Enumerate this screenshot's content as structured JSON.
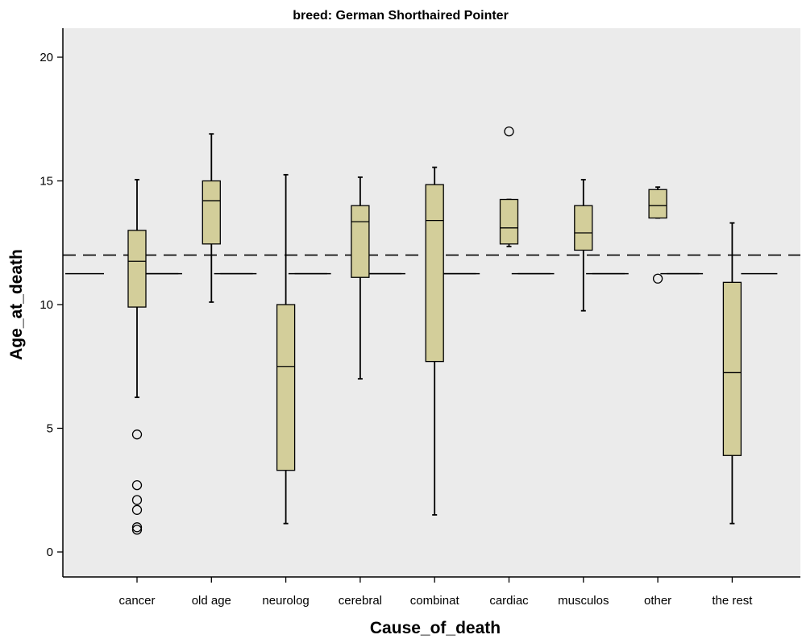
{
  "chart_data": {
    "type": "box",
    "title": "breed: German Shorthaired Pointer",
    "xlabel": "Cause_of_death",
    "ylabel": "Age_at_death",
    "ylim": [
      -2,
      21.3
    ],
    "yticks": [
      0,
      5,
      10,
      15,
      20
    ],
    "grid": false,
    "legend": "none",
    "colors": {
      "plot_bg": "#ebebeb",
      "box_fill": "#d3ce9a",
      "stroke": "#000000"
    },
    "reference_lines": [
      {
        "style": "dashed",
        "y": 12.0,
        "scope": "full-width"
      },
      {
        "style": "long-dash-segments",
        "y": 11.25,
        "scope": "per-category"
      }
    ],
    "categories": [
      "cancer",
      "old age",
      "neurolog",
      "cerebral",
      "combinat",
      "cardiac",
      "musculos",
      "other",
      "the rest"
    ],
    "boxes": [
      {
        "category": "cancer",
        "whisker_low": 6.25,
        "q1": 9.9,
        "median": 11.75,
        "q3": 13.0,
        "whisker_high": 15.05,
        "outliers": [
          4.75,
          2.7,
          2.1,
          1.7,
          1.0,
          0.9
        ]
      },
      {
        "category": "old age",
        "whisker_low": 10.1,
        "q1": 12.45,
        "median": 14.2,
        "q3": 15.0,
        "whisker_high": 16.9,
        "outliers": []
      },
      {
        "category": "neurolog",
        "whisker_low": 1.15,
        "q1": 3.3,
        "median": 7.5,
        "q3": 10.0,
        "whisker_high": 15.25,
        "outliers": []
      },
      {
        "category": "cerebral",
        "whisker_low": 7.0,
        "q1": 11.1,
        "median": 13.35,
        "q3": 14.0,
        "whisker_high": 15.15,
        "outliers": []
      },
      {
        "category": "combinat",
        "whisker_low": 1.5,
        "q1": 7.7,
        "median": 13.4,
        "q3": 14.85,
        "whisker_high": 15.55,
        "outliers": []
      },
      {
        "category": "cardiac",
        "whisker_low": 12.35,
        "q1": 12.45,
        "median": 13.1,
        "q3": 14.25,
        "whisker_high": 14.25,
        "outliers": [
          17.0
        ]
      },
      {
        "category": "musculos",
        "whisker_low": 9.75,
        "q1": 12.2,
        "median": 12.9,
        "q3": 14.0,
        "whisker_high": 15.05,
        "outliers": []
      },
      {
        "category": "other",
        "whisker_low": 13.5,
        "q1": 13.5,
        "median": 14.0,
        "q3": 14.65,
        "whisker_high": 14.75,
        "outliers": [
          11.05
        ]
      },
      {
        "category": "the rest",
        "whisker_low": 1.15,
        "q1": 3.9,
        "median": 7.25,
        "q3": 10.9,
        "whisker_high": 13.3,
        "outliers": []
      }
    ]
  }
}
